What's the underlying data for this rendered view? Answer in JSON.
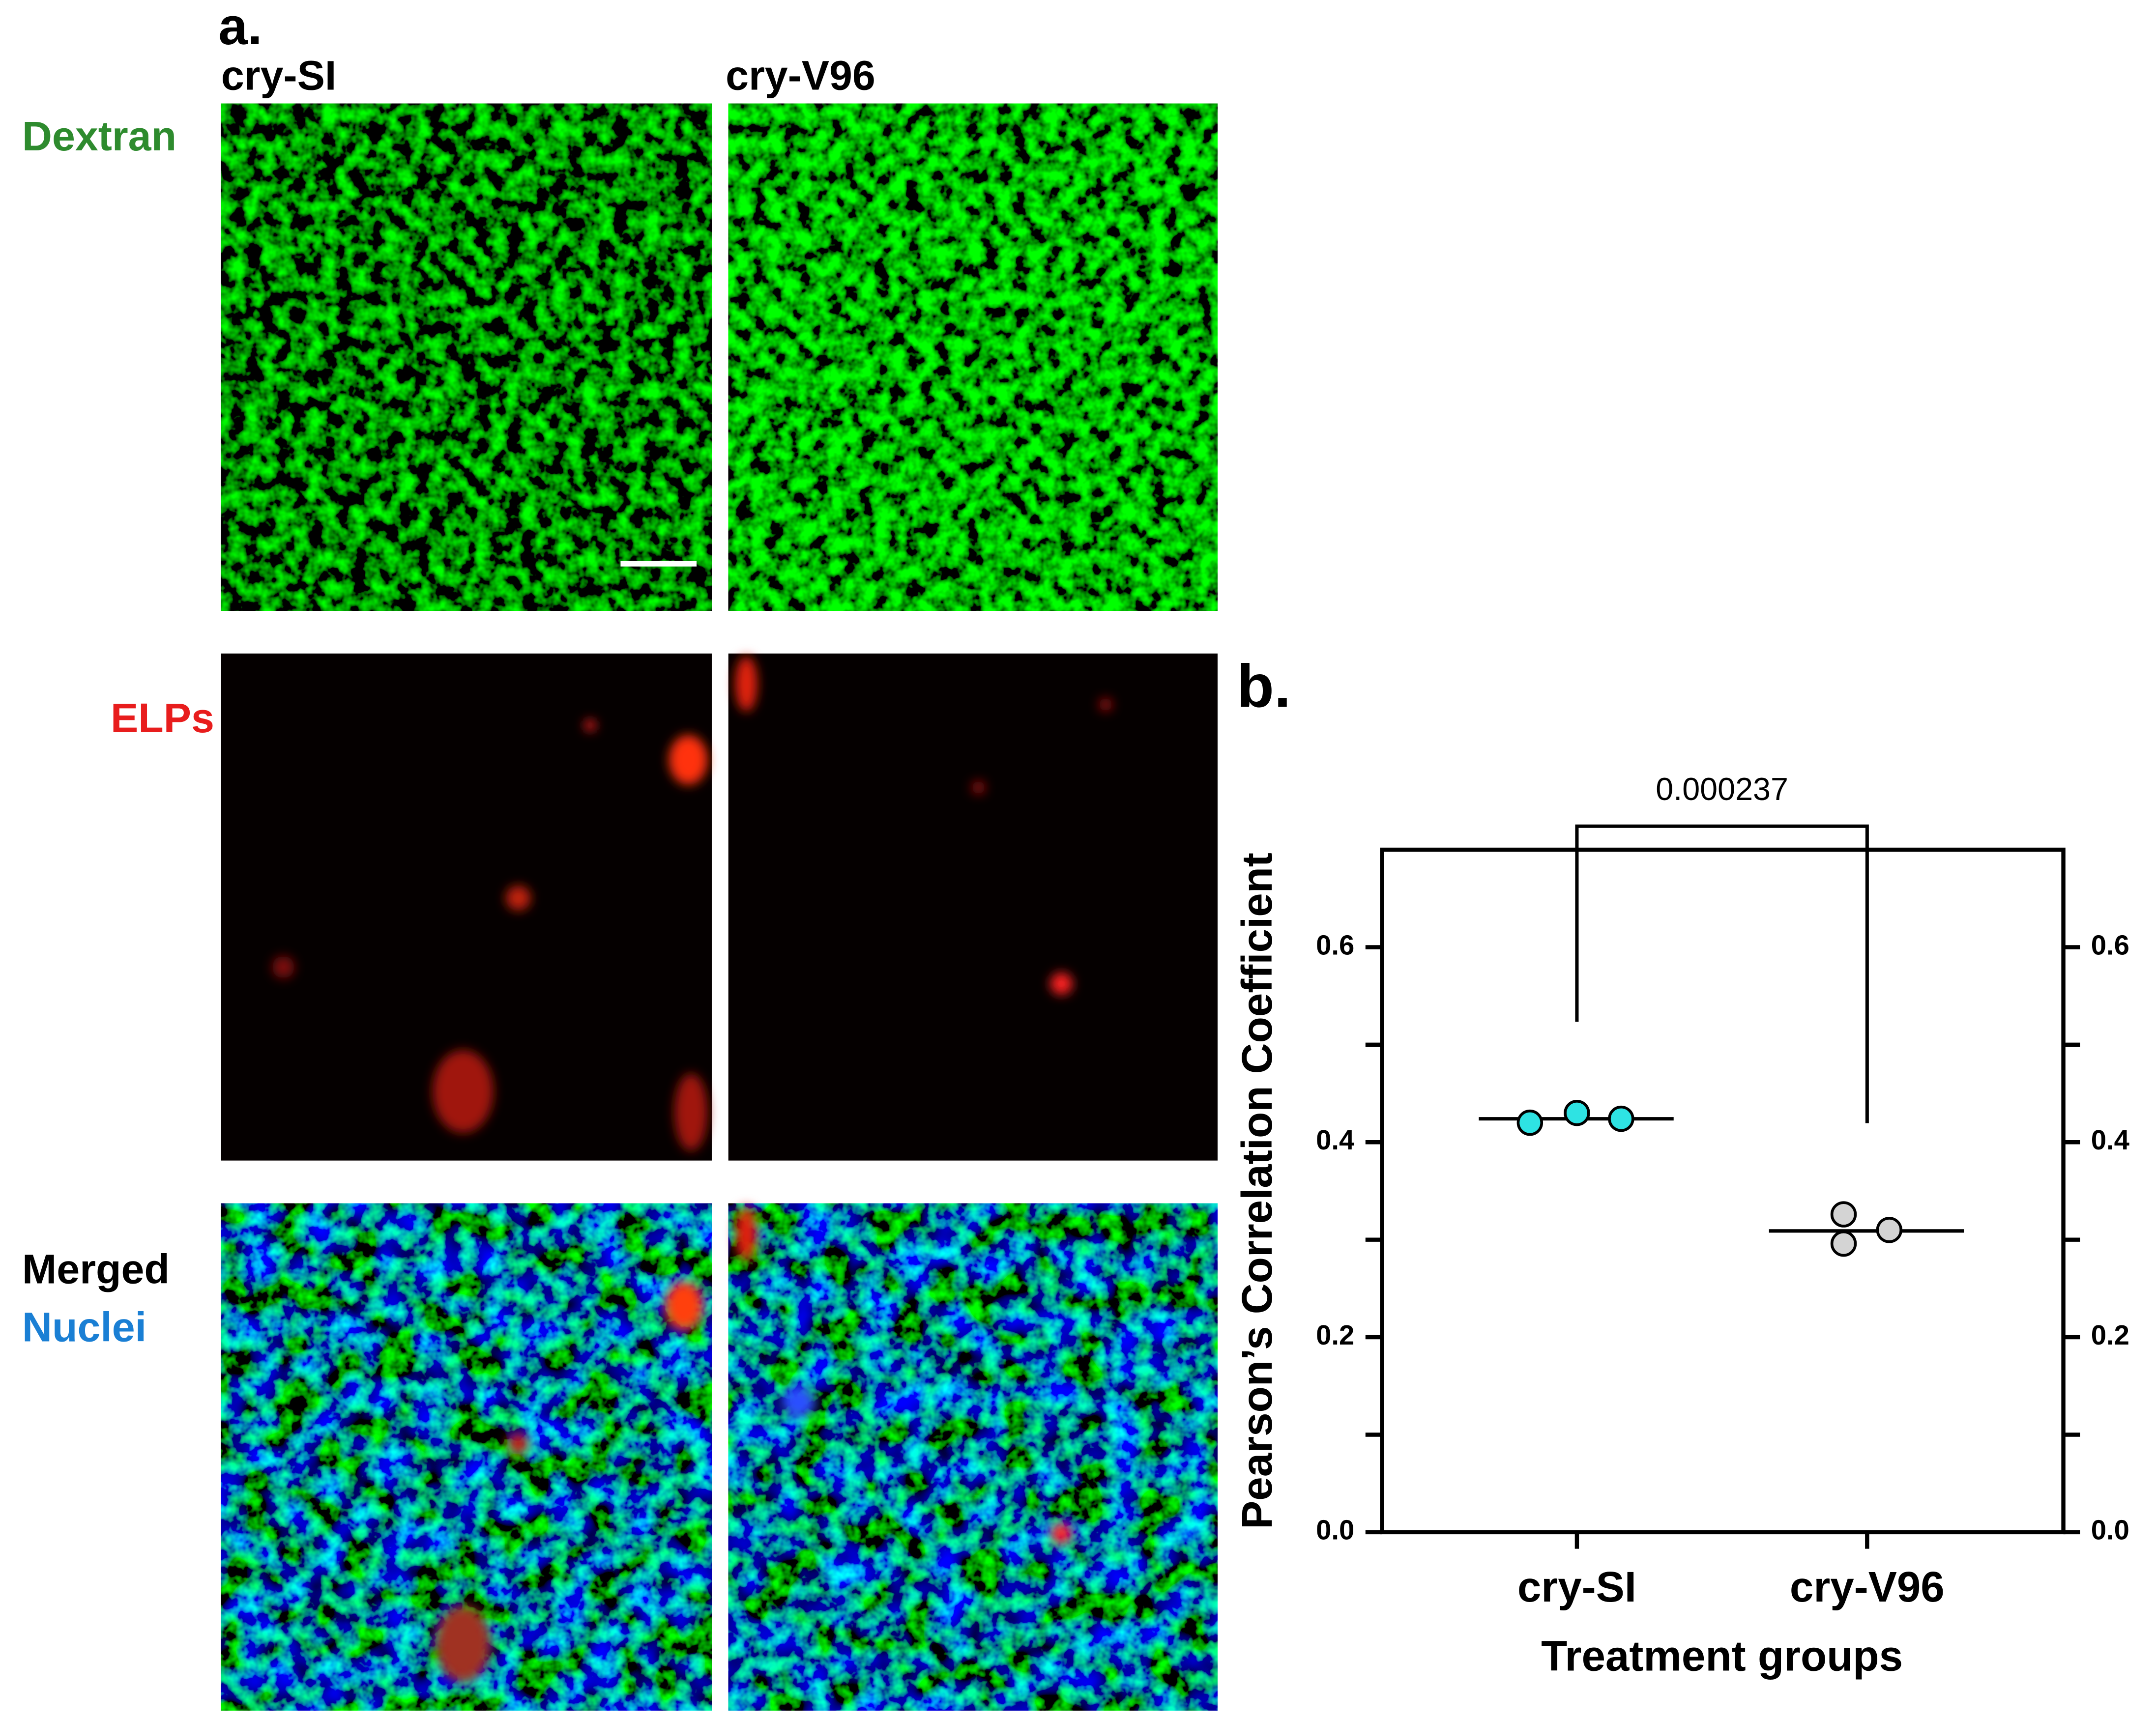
{
  "panel_a": {
    "label": "a.",
    "columns": [
      "cry-SI",
      "cry-V96"
    ],
    "rows": [
      "Dextran",
      "ELPs",
      "Merged",
      "Nuclei"
    ]
  },
  "chart_data": {
    "type": "dot",
    "panel_label": "b.",
    "ylabel": "Pearson’s Correlation Coefficient",
    "xlabel": "Treatment groups",
    "categories": [
      "cry-SI",
      "cry-V96"
    ],
    "values": [
      [
        0.42,
        0.43,
        0.424
      ],
      [
        0.326,
        0.296,
        0.31
      ]
    ],
    "means": [
      0.424,
      0.309
    ],
    "colors": [
      "#2ee3e3",
      "#d4d4d4"
    ],
    "annotation": "0.000237",
    "ylim": [
      0,
      0.7
    ],
    "yticks": [
      {
        "value": 0,
        "label": "0.0"
      },
      0.2,
      0.4,
      0.6
    ],
    "yminorticks": [
      0.1,
      0.3,
      0.5
    ],
    "y2lim": [
      0,
      0.7
    ],
    "y2ticks": [
      {
        "value": 0,
        "label": "0.0"
      },
      0.2,
      0.4,
      0.6
    ],
    "y2minorticks": [
      0.1,
      0.3,
      0.5
    ]
  }
}
